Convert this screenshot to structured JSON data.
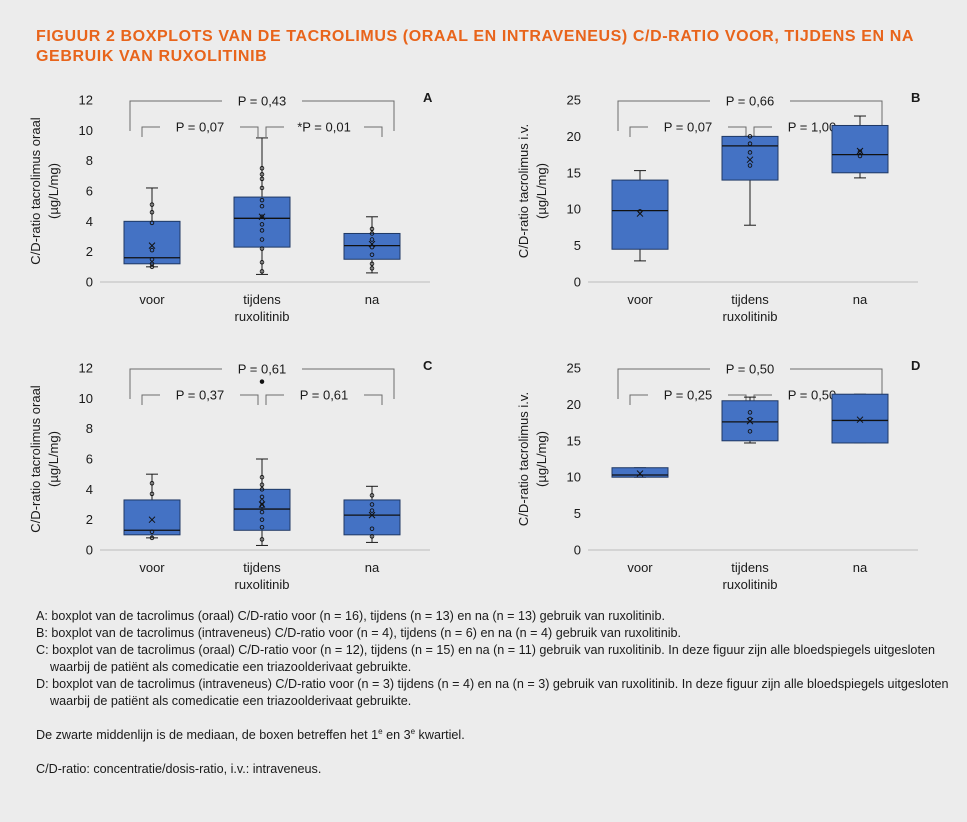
{
  "figure": {
    "title": "FIGUUR 2  BOXPLOTS VAN DE TACROLIMUS (ORAAL EN INTRAVENEUS) C/D-RATIO VOOR, TIJDENS EN NA GEBRUIK VAN RUXOLITINIB"
  },
  "chart_data": [
    {
      "type": "box",
      "panel": "A",
      "ylabel": [
        "C/D-ratio tacrolimus oraal",
        "(µg/L/mg)"
      ],
      "ylim": [
        0,
        12
      ],
      "yticks": [
        0,
        2,
        4,
        6,
        8,
        10,
        12
      ],
      "categories": [
        [
          "voor"
        ],
        [
          "tijdens",
          "ruxolitinib"
        ],
        [
          "na"
        ]
      ],
      "boxes": [
        {
          "min": 1.0,
          "q1": 1.2,
          "median": 1.6,
          "q3": 4.0,
          "max": 6.2,
          "mean": 2.4,
          "points": [
            1.0,
            1.2,
            1.5,
            2.1,
            3.9,
            4.6,
            5.1
          ]
        },
        {
          "min": 0.5,
          "q1": 2.3,
          "median": 4.2,
          "q3": 5.6,
          "max": 9.5,
          "mean": 4.3,
          "points": [
            0.7,
            1.3,
            2.2,
            2.8,
            3.4,
            3.8,
            4.3,
            5.0,
            5.4,
            6.2,
            6.8,
            7.1,
            7.5
          ]
        },
        {
          "min": 0.6,
          "q1": 1.5,
          "median": 2.4,
          "q3": 3.2,
          "max": 4.3,
          "mean": 2.5,
          "points": [
            0.9,
            1.2,
            1.8,
            2.3,
            2.8,
            3.2,
            3.5
          ]
        }
      ],
      "comparisons": [
        {
          "from": 0,
          "to": 2,
          "label": "P = 0,43"
        },
        {
          "from": 0,
          "to": 1,
          "label": "P = 0,07"
        },
        {
          "from": 1,
          "to": 2,
          "label": "*P = 0,01"
        }
      ]
    },
    {
      "type": "box",
      "panel": "B",
      "ylabel": [
        "C/D-ratio tacrolimus i.v.",
        "(µg/L/mg)"
      ],
      "ylim": [
        0,
        25
      ],
      "yticks": [
        0,
        5,
        10,
        15,
        20,
        25
      ],
      "categories": [
        [
          "voor"
        ],
        [
          "tijdens",
          "ruxolitinib"
        ],
        [
          "na"
        ]
      ],
      "boxes": [
        {
          "min": 2.9,
          "q1": 4.5,
          "median": 9.8,
          "q3": 14.0,
          "max": 15.3,
          "mean": 9.4,
          "points": [
            9.7
          ]
        },
        {
          "min": 7.8,
          "q1": 14.0,
          "median": 18.7,
          "q3": 20.0,
          "max": 20.0,
          "mean": 16.8,
          "points": [
            16.0,
            17.8,
            19.0,
            20.0
          ]
        },
        {
          "min": 14.3,
          "q1": 15.0,
          "median": 17.5,
          "q3": 21.5,
          "max": 22.8,
          "mean": 18.0,
          "points": [
            17.3,
            17.9
          ]
        }
      ],
      "comparisons": [
        {
          "from": 0,
          "to": 2,
          "label": "P = 0,66"
        },
        {
          "from": 0,
          "to": 1,
          "label": "P = 0,07"
        },
        {
          "from": 1,
          "to": 2,
          "label": "P = 1,00"
        }
      ]
    },
    {
      "type": "box",
      "panel": "C",
      "ylabel": [
        "C/D-ratio tacrolimus oraal",
        "(µg/L/mg)"
      ],
      "ylim": [
        0,
        12
      ],
      "yticks": [
        0,
        2,
        4,
        6,
        8,
        10,
        12
      ],
      "categories": [
        [
          "voor"
        ],
        [
          "tijdens",
          "ruxolitinib"
        ],
        [
          "na"
        ]
      ],
      "boxes": [
        {
          "min": 0.8,
          "q1": 1.0,
          "median": 1.3,
          "q3": 3.3,
          "max": 5.0,
          "mean": 2.0,
          "points": [
            0.8,
            1.2,
            3.7,
            4.4
          ]
        },
        {
          "min": 0.3,
          "q1": 1.3,
          "median": 2.7,
          "q3": 4.0,
          "max": 6.0,
          "mean": 3.0,
          "outliers": [
            11.1
          ],
          "points": [
            0.7,
            1.5,
            2.0,
            2.5,
            2.9,
            3.2,
            3.5,
            4.0,
            4.3,
            4.8
          ]
        },
        {
          "min": 0.5,
          "q1": 1.0,
          "median": 2.3,
          "q3": 3.3,
          "max": 4.2,
          "mean": 2.3,
          "points": [
            0.9,
            1.4,
            2.6,
            3.0,
            3.6
          ]
        }
      ],
      "comparisons": [
        {
          "from": 0,
          "to": 2,
          "label": "P = 0,61"
        },
        {
          "from": 0,
          "to": 1,
          "label": "P = 0,37"
        },
        {
          "from": 1,
          "to": 2,
          "label": "P = 0,61"
        }
      ]
    },
    {
      "type": "box",
      "panel": "D",
      "ylabel": [
        "C/D-ratio tacrolimus i.v.",
        "(µg/L/mg)"
      ],
      "ylim": [
        0,
        25
      ],
      "yticks": [
        0,
        5,
        10,
        15,
        20,
        25
      ],
      "categories": [
        [
          "voor"
        ],
        [
          "tijdens",
          "ruxolitinib"
        ],
        [
          "na"
        ]
      ],
      "boxes": [
        {
          "min": 10.0,
          "q1": 10.0,
          "median": 10.3,
          "q3": 11.3,
          "max": 11.3,
          "mean": 10.5,
          "points": []
        },
        {
          "min": 14.7,
          "q1": 15.0,
          "median": 17.6,
          "q3": 20.5,
          "max": 21.0,
          "mean": 17.7,
          "points": [
            16.3,
            18.0,
            18.9
          ]
        },
        {
          "min": 14.7,
          "q1": 14.7,
          "median": 17.8,
          "q3": 21.4,
          "max": 21.4,
          "mean": 17.9,
          "points": []
        }
      ],
      "comparisons": [
        {
          "from": 0,
          "to": 2,
          "label": "P = 0,50"
        },
        {
          "from": 0,
          "to": 1,
          "label": "P = 0,25"
        },
        {
          "from": 1,
          "to": 2,
          "label": "P = 0,50"
        }
      ]
    }
  ],
  "notes": {
    "a": "A: boxplot van de tacrolimus (oraal) C/D-ratio voor (n = 16), tijdens (n = 13) en na (n = 13) gebruik van ruxolitinib.",
    "b": "B: boxplot van de tacrolimus (intraveneus) C/D-ratio voor (n = 4), tijdens (n = 6) en na (n = 4) gebruik van ruxolitinib.",
    "c": "C: boxplot van de tacrolimus (oraal) C/D-ratio voor (n = 12), tijdens (n = 15) en na (n = 11) gebruik van ruxolitinib. In deze figuur zijn alle bloedspiegels uitgesloten waarbij de patiënt als comedicatie een triazoolderivaat gebruikte.",
    "d": "D: boxplot van de tacrolimus (intraveneus) C/D-ratio voor (n = 3) tijdens (n = 4) en na (n = 3) gebruik van ruxolitinib. In deze figuur zijn alle bloedspiegels uitgesloten waarbij de patiënt als comedicatie een triazoolderivaat gebruikte.",
    "median_pre": "De zwarte middenlijn is de mediaan, de boxen betreffen het 1",
    "sup1": "e",
    "median_mid": " en 3",
    "sup3": "e",
    "median_post": " kwartiel.",
    "abbrev": "C/D-ratio: concentratie/dosis-ratio, i.v.: intraveneus."
  }
}
